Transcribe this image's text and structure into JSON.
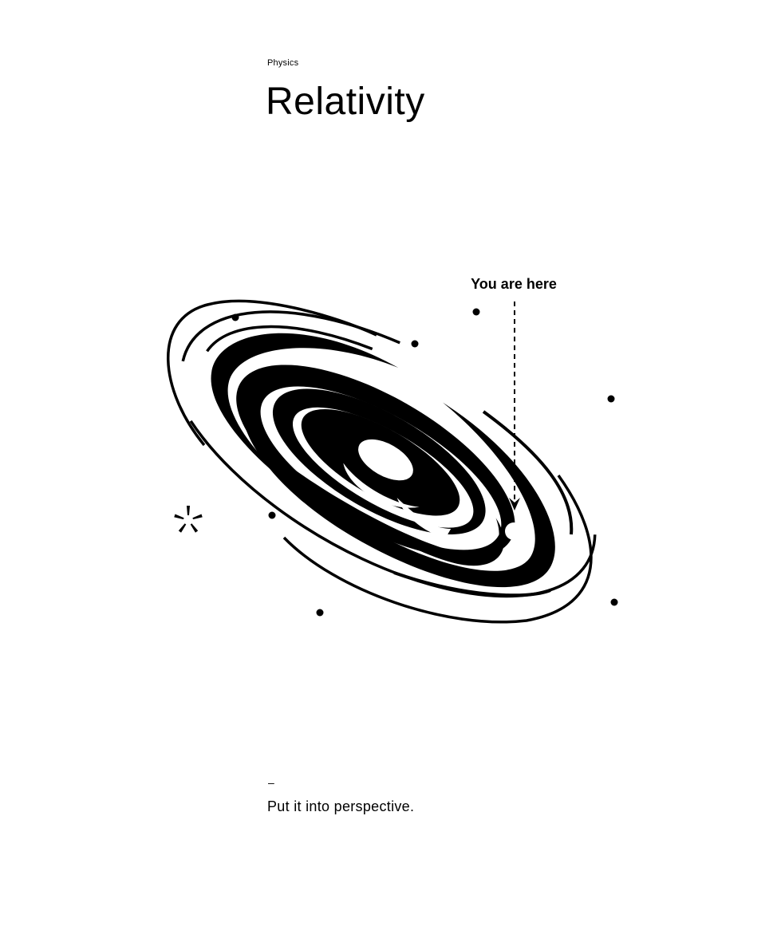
{
  "header": {
    "category": "Physics",
    "title": "Relativity"
  },
  "illustration": {
    "marker_label": "You are here",
    "icons": [
      "galaxy-icon",
      "asterisk-icon",
      "star-dot-icon",
      "location-marker-icon"
    ],
    "colors": {
      "ink": "#000000",
      "paper": "#ffffff"
    }
  },
  "footer": {
    "dash": "–",
    "tagline": "Put it into perspective."
  }
}
